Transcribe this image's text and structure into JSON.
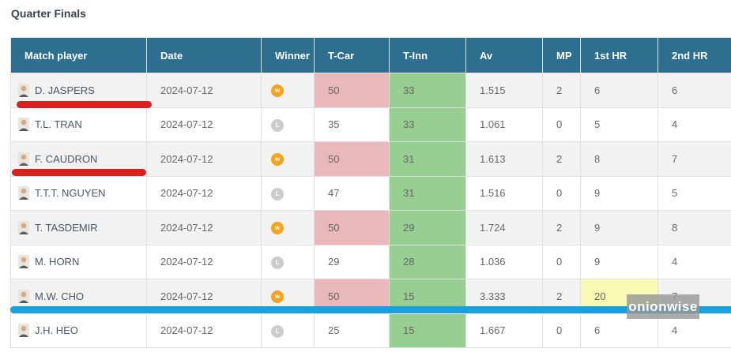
{
  "title": "Quarter Finals",
  "watermark": "onionwise",
  "colors": {
    "header_bg": "#2e6e8e",
    "header_text": "#ffffff",
    "border": "#e0e0e0",
    "row_alt_bg": "#f2f2f2",
    "win_badge": "#f6a21d",
    "loss_badge": "#cccccc",
    "tcar_highlight": "#eab8bb",
    "tinn_highlight": "#97cf93",
    "hr_highlight": "#fafab4",
    "annotation_red": "#d9201f",
    "annotation_blue": "#18a0e0",
    "watermark_bg": "rgba(150,150,150,0.8)"
  },
  "table": {
    "columns": [
      "Match player",
      "Date",
      "Winner",
      "T-Car",
      "T-Inn",
      "Av",
      "MP",
      "1st HR",
      "2nd HR"
    ],
    "rows": [
      {
        "player": "D. JASPERS",
        "date": "2024-07-12",
        "winner": "w",
        "t_car": "50",
        "t_car_hl": true,
        "t_inn": "33",
        "t_inn_hl": true,
        "av": "1.515",
        "mp": "2",
        "hr1": "6",
        "hr1_hl": false,
        "hr2": "6"
      },
      {
        "player": "T.L. TRAN",
        "date": "2024-07-12",
        "winner": "L",
        "t_car": "35",
        "t_car_hl": false,
        "t_inn": "33",
        "t_inn_hl": true,
        "av": "1.061",
        "mp": "0",
        "hr1": "5",
        "hr1_hl": false,
        "hr2": "4"
      },
      {
        "player": "F. CAUDRON",
        "date": "2024-07-12",
        "winner": "w",
        "t_car": "50",
        "t_car_hl": true,
        "t_inn": "31",
        "t_inn_hl": true,
        "av": "1.613",
        "mp": "2",
        "hr1": "8",
        "hr1_hl": false,
        "hr2": "7"
      },
      {
        "player": "T.T.T. NGUYEN",
        "date": "2024-07-12",
        "winner": "L",
        "t_car": "47",
        "t_car_hl": false,
        "t_inn": "31",
        "t_inn_hl": true,
        "av": "1.516",
        "mp": "0",
        "hr1": "9",
        "hr1_hl": false,
        "hr2": "5"
      },
      {
        "player": "T. TASDEMIR",
        "date": "2024-07-12",
        "winner": "w",
        "t_car": "50",
        "t_car_hl": true,
        "t_inn": "29",
        "t_inn_hl": true,
        "av": "1.724",
        "mp": "2",
        "hr1": "9",
        "hr1_hl": false,
        "hr2": "8"
      },
      {
        "player": "M. HORN",
        "date": "2024-07-12",
        "winner": "L",
        "t_car": "29",
        "t_car_hl": false,
        "t_inn": "28",
        "t_inn_hl": true,
        "av": "1.036",
        "mp": "0",
        "hr1": "9",
        "hr1_hl": false,
        "hr2": "4"
      },
      {
        "player": "M.W. CHO",
        "date": "2024-07-12",
        "winner": "w",
        "t_car": "50",
        "t_car_hl": true,
        "t_inn": "15",
        "t_inn_hl": true,
        "av": "3.333",
        "mp": "2",
        "hr1": "20",
        "hr1_hl": true,
        "hr2": "7"
      },
      {
        "player": "J.H. HEO",
        "date": "2024-07-12",
        "winner": "L",
        "t_car": "25",
        "t_car_hl": false,
        "t_inn": "15",
        "t_inn_hl": true,
        "av": "1.667",
        "mp": "0",
        "hr1": "6",
        "hr1_hl": false,
        "hr2": "4"
      }
    ]
  },
  "annotations": {
    "red_underlined_players": [
      "D. JASPERS",
      "F. CAUDRON"
    ],
    "blue_divider_between": [
      "M.W. CHO",
      "J.H. HEO"
    ]
  }
}
